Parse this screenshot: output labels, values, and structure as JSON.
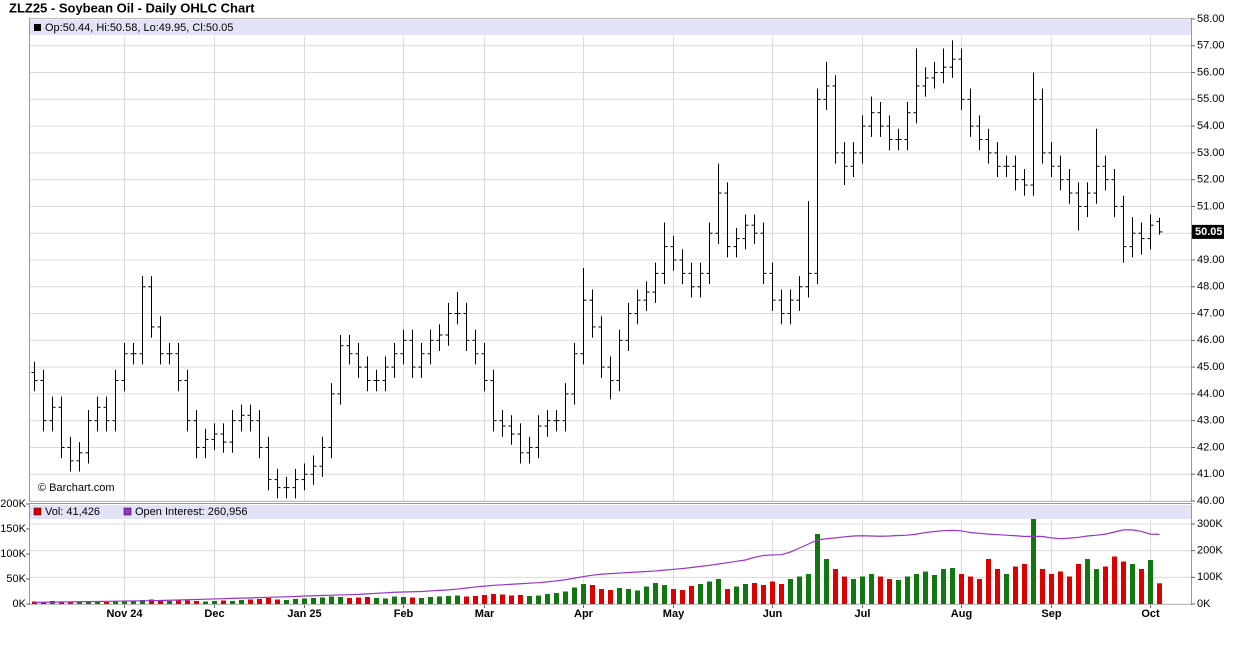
{
  "title": "ZLZ25 - Soybean Oil - Daily OHLC Chart",
  "header": "Op:50.44, Hi:50.58, Lo:49.95, Cl:50.05",
  "watermark": "© Barchart.com",
  "chart_data": [
    {
      "type": "ohlc",
      "open": [
        44.8,
        44.5,
        43,
        43.5,
        42,
        41.5,
        41.8,
        43,
        43.5,
        43,
        44.5,
        45.5,
        45.5,
        48,
        46.5,
        45.5,
        45.5,
        44.5,
        43,
        42,
        42.3,
        42.5,
        42.2,
        43,
        43.2,
        43,
        42,
        40.8,
        40.5,
        40.5,
        40.8,
        41,
        41.3,
        42,
        44,
        45.8,
        45.5,
        45,
        44.5,
        44.5,
        45,
        45.5,
        46,
        45,
        45.5,
        46,
        46.2,
        47,
        47,
        46,
        45.5,
        44.5,
        43,
        42.8,
        42.5,
        41.8,
        42,
        42.8,
        43,
        43,
        44,
        45.5,
        47.5,
        46.5,
        45,
        44.5,
        46,
        47,
        47.5,
        47.8,
        48.5,
        49.5,
        49,
        48.5,
        48,
        48.5,
        50,
        51.5,
        49.5,
        49.8,
        50.3,
        50,
        48.5,
        47.5,
        47,
        47.5,
        48,
        48.5,
        55,
        55.5,
        53,
        52.5,
        53,
        54,
        54.5,
        54,
        53.5,
        53.5,
        54.5,
        55.5,
        55.8,
        56,
        56.2,
        56.5,
        55,
        54,
        53.5,
        53,
        52.5,
        52.5,
        52,
        51.8,
        55,
        53,
        52.5,
        52,
        51.5,
        51,
        51.5,
        52.5,
        52,
        51,
        49.5,
        50,
        49.8,
        50.44
      ],
      "high": [
        45.2,
        44.9,
        43.9,
        43.9,
        42.4,
        42.2,
        43.4,
        43.9,
        43.9,
        44.9,
        45.9,
        45.9,
        48.4,
        48.4,
        46.9,
        45.9,
        45.9,
        44.9,
        43.4,
        42.7,
        42.9,
        42.9,
        43.4,
        43.6,
        43.6,
        43.4,
        42.4,
        41.2,
        40.9,
        41.2,
        41.4,
        41.7,
        42.4,
        44.4,
        46.2,
        46.2,
        45.9,
        45.4,
        44.9,
        45.4,
        45.9,
        46.4,
        46.4,
        45.9,
        46.4,
        46.6,
        47.4,
        47.8,
        47.4,
        46.4,
        45.9,
        44.9,
        43.4,
        43.2,
        42.9,
        42.4,
        43.2,
        43.4,
        43.4,
        44.4,
        45.9,
        48.7,
        47.9,
        46.9,
        45.4,
        46.4,
        47.4,
        47.9,
        48.2,
        48.9,
        50.4,
        49.9,
        49.4,
        48.9,
        48.9,
        50.4,
        52.6,
        51.9,
        50.2,
        50.7,
        50.7,
        50.4,
        48.9,
        47.9,
        47.9,
        48.4,
        51.2,
        55.4,
        56.4,
        55.9,
        53.4,
        53.4,
        54.4,
        55.1,
        54.9,
        54.4,
        53.9,
        54.9,
        56.9,
        56.2,
        56.4,
        56.9,
        57.2,
        56.9,
        55.4,
        54.4,
        53.9,
        53.4,
        52.9,
        52.9,
        52.4,
        56,
        55.4,
        53.4,
        52.9,
        52.4,
        51.9,
        51.9,
        53.9,
        52.9,
        52.4,
        51.4,
        50.6,
        50.4,
        50.7,
        50.58
      ],
      "low": [
        44.1,
        42.6,
        42.6,
        41.6,
        41.1,
        41.1,
        41.4,
        42.6,
        42.6,
        42.6,
        44.1,
        45.1,
        45.1,
        46.1,
        45.1,
        45.1,
        44.1,
        42.6,
        41.6,
        41.6,
        41.9,
        41.8,
        41.8,
        42.6,
        42.6,
        41.6,
        40.4,
        40.1,
        40.1,
        40.1,
        40.4,
        40.6,
        40.9,
        41.6,
        43.6,
        45.1,
        44.6,
        44.1,
        44.1,
        44.1,
        44.6,
        45.1,
        44.6,
        44.6,
        45.1,
        45.6,
        45.8,
        46.6,
        45.6,
        45.1,
        44.1,
        42.6,
        42.4,
        42.1,
        41.4,
        41.4,
        41.6,
        42.4,
        42.6,
        42.6,
        43.6,
        45.1,
        46.1,
        44.6,
        43.8,
        44.1,
        45.6,
        46.6,
        47.1,
        47.4,
        48.1,
        48.6,
        48.1,
        47.6,
        47.6,
        48.1,
        49.6,
        49.1,
        49.1,
        49.4,
        49.6,
        48.1,
        47.1,
        46.6,
        46.6,
        47.1,
        47.6,
        48.1,
        54.6,
        52.6,
        51.8,
        52.1,
        52.6,
        53.6,
        53.6,
        53.1,
        53.1,
        53.1,
        54.1,
        55.1,
        55.4,
        55.6,
        55.8,
        54.6,
        53.6,
        53.1,
        52.6,
        52.1,
        52.1,
        51.6,
        51.4,
        51.4,
        52.6,
        52.1,
        51.6,
        51.1,
        50.1,
        50.6,
        51.1,
        51.6,
        50.6,
        48.9,
        49.1,
        49.2,
        49.4,
        49.95
      ],
      "close": [
        44.5,
        43,
        43.5,
        42,
        41.5,
        41.8,
        43,
        43.5,
        43,
        44.5,
        45.5,
        45.5,
        48,
        46.5,
        45.5,
        45.5,
        44.5,
        43,
        42,
        42.3,
        42.5,
        42.2,
        43,
        43.2,
        43,
        42,
        40.8,
        40.5,
        40.5,
        40.8,
        41,
        41.3,
        42,
        44,
        45.8,
        45.5,
        45,
        44.5,
        44.5,
        45,
        45.5,
        46,
        45,
        45.5,
        46,
        46.2,
        47,
        47,
        46,
        45.5,
        44.5,
        43,
        42.8,
        42.5,
        41.8,
        42,
        42.8,
        43,
        43,
        44,
        45.5,
        47.5,
        46.5,
        45,
        44.5,
        46,
        47,
        47.5,
        47.8,
        48.5,
        49.5,
        49,
        48.5,
        48,
        48.5,
        50,
        51.5,
        49.5,
        49.8,
        50.3,
        50,
        48.5,
        47.5,
        47,
        47.5,
        48,
        48.5,
        55,
        55.5,
        53,
        52.5,
        53,
        54,
        54.5,
        54,
        53.5,
        53.5,
        54.5,
        55.5,
        55.8,
        56,
        56.2,
        56.5,
        55,
        54,
        53.5,
        53,
        52.5,
        52.5,
        52,
        51.8,
        55,
        53,
        52.5,
        52,
        51.5,
        51,
        51.5,
        52.5,
        52,
        51,
        49.5,
        50,
        49.8,
        50.3,
        50.05
      ],
      "color": "#000000",
      "ylim": [
        40,
        58
      ],
      "yticks": [
        {
          "value": 40,
          "label": "40.00"
        },
        {
          "value": 41,
          "label": "41.00"
        },
        {
          "value": 42,
          "label": "42.00"
        },
        {
          "value": 43,
          "label": "43.00"
        },
        {
          "value": 44,
          "label": "44.00"
        },
        {
          "value": 45,
          "label": "45.00"
        },
        {
          "value": 46,
          "label": "46.00"
        },
        {
          "value": 47,
          "label": "47.00"
        },
        {
          "value": 48,
          "label": "48.00"
        },
        {
          "value": 49,
          "label": "49.00"
        },
        {
          "value": 50,
          "label": "50.00"
        },
        {
          "value": 51,
          "label": "51.00"
        },
        {
          "value": 52,
          "label": "52.00"
        },
        {
          "value": 53,
          "label": "53.00"
        },
        {
          "value": 54,
          "label": "54.00"
        },
        {
          "value": 55,
          "label": "55.00"
        },
        {
          "value": 56,
          "label": "56.00"
        },
        {
          "value": 57,
          "label": "57.00"
        },
        {
          "value": 58,
          "label": "58.00"
        }
      ],
      "grid": true
    },
    {
      "type": "bar",
      "categories": [
        null,
        null,
        null,
        null,
        null,
        null,
        null,
        null,
        null,
        null,
        "Nov 24",
        null,
        null,
        null,
        null,
        null,
        null,
        null,
        null,
        null,
        "Dec",
        null,
        null,
        null,
        null,
        null,
        null,
        null,
        null,
        null,
        "Jan 25",
        null,
        null,
        null,
        null,
        null,
        null,
        null,
        null,
        null,
        null,
        "Feb",
        null,
        null,
        null,
        null,
        null,
        null,
        null,
        null,
        "Mar",
        null,
        null,
        null,
        null,
        null,
        null,
        null,
        null,
        null,
        null,
        "Apr",
        null,
        null,
        null,
        null,
        null,
        null,
        null,
        null,
        null,
        "May",
        null,
        null,
        null,
        null,
        null,
        null,
        null,
        null,
        null,
        null,
        "Jun",
        null,
        null,
        null,
        null,
        null,
        null,
        null,
        null,
        null,
        "Jul",
        null,
        null,
        null,
        null,
        null,
        null,
        null,
        null,
        null,
        null,
        "Aug",
        null,
        null,
        null,
        null,
        null,
        null,
        null,
        null,
        null,
        "Sep",
        null,
        null,
        null,
        null,
        null,
        null,
        null,
        null,
        null,
        null,
        "Oct",
        null
      ],
      "series": [
        {
          "name": "Vol: 41,426",
          "color": "#dd0000",
          "up_color": "#117711",
          "down_color": "#dd0000",
          "values": [
            5000,
            4000,
            6000,
            5000,
            4000,
            5000,
            6000,
            5000,
            4000,
            6000,
            7000,
            6000,
            8000,
            9000,
            7000,
            6000,
            8000,
            7000,
            6000,
            5000,
            6000,
            7000,
            6000,
            8000,
            9000,
            10000,
            12000,
            9000,
            8000,
            10000,
            11000,
            12000,
            13000,
            15000,
            14000,
            12000,
            13000,
            14000,
            12000,
            11000,
            15000,
            14000,
            13000,
            12000,
            14000,
            15000,
            16000,
            17000,
            15000,
            16000,
            18000,
            20000,
            19000,
            17000,
            18000,
            16000,
            17000,
            20000,
            22000,
            25000,
            33000,
            40000,
            38000,
            30000,
            28000,
            32000,
            30000,
            27000,
            35000,
            42000,
            38000,
            30000,
            28000,
            36000,
            40000,
            45000,
            50000,
            30000,
            35000,
            40000,
            42000,
            38000,
            45000,
            40000,
            50000,
            55000,
            60000,
            140000,
            90000,
            70000,
            55000,
            50000,
            55000,
            60000,
            55000,
            50000,
            48000,
            55000,
            60000,
            65000,
            58000,
            70000,
            72000,
            60000,
            55000,
            50000,
            90000,
            70000,
            60000,
            75000,
            80000,
            170000,
            70000,
            60000,
            65000,
            55000,
            80000,
            90000,
            70000,
            75000,
            95000,
            85000,
            80000,
            70000,
            88000,
            41426
          ]
        },
        {
          "name": "Open Interest: 260,956",
          "color": "#9933cc",
          "axis": "y2",
          "values": [
            6000,
            6500,
            7000,
            7500,
            8000,
            8500,
            9000,
            9500,
            10000,
            10500,
            11000,
            11500,
            12000,
            12500,
            13000,
            14000,
            15000,
            16000,
            17000,
            18000,
            19000,
            20000,
            21000,
            22000,
            23000,
            24000,
            25000,
            26000,
            27000,
            28000,
            30000,
            31000,
            32000,
            33000,
            34000,
            35000,
            36000,
            38000,
            40000,
            42000,
            44000,
            45000,
            46000,
            47000,
            49000,
            51000,
            53000,
            56000,
            60000,
            64000,
            67000,
            70000,
            72000,
            74000,
            76000,
            78000,
            80000,
            83000,
            87000,
            91000,
            97000,
            103000,
            108000,
            112000,
            114000,
            116000,
            118000,
            120000,
            122000,
            124000,
            127000,
            130000,
            133000,
            137000,
            141000,
            145000,
            150000,
            155000,
            160000,
            165000,
            175000,
            182000,
            184000,
            185000,
            195000,
            210000,
            225000,
            240000,
            245000,
            248000,
            252000,
            255000,
            256000,
            255000,
            254000,
            255000,
            257000,
            258000,
            262000,
            268000,
            272000,
            275000,
            276000,
            274000,
            268000,
            265000,
            262000,
            260000,
            258000,
            256000,
            253000,
            254000,
            253000,
            248000,
            245000,
            247000,
            250000,
            255000,
            258000,
            262000,
            270000,
            278000,
            278000,
            272000,
            262000,
            260956
          ]
        }
      ],
      "ylim": [
        0,
        200000
      ],
      "yticks": [
        {
          "value": 0,
          "label": "0K"
        },
        {
          "value": 50000,
          "label": "50K"
        },
        {
          "value": 100000,
          "label": "100K"
        },
        {
          "value": 150000,
          "label": "150K"
        },
        {
          "value": 200000,
          "label": "200K"
        }
      ],
      "y2lim": [
        0,
        375000
      ],
      "y2ticks": [
        {
          "value": 0,
          "label": "0K"
        },
        {
          "value": 100000,
          "label": "100K"
        },
        {
          "value": 200000,
          "label": "200K"
        },
        {
          "value": 300000,
          "label": "300K"
        }
      ],
      "grid": true
    }
  ]
}
